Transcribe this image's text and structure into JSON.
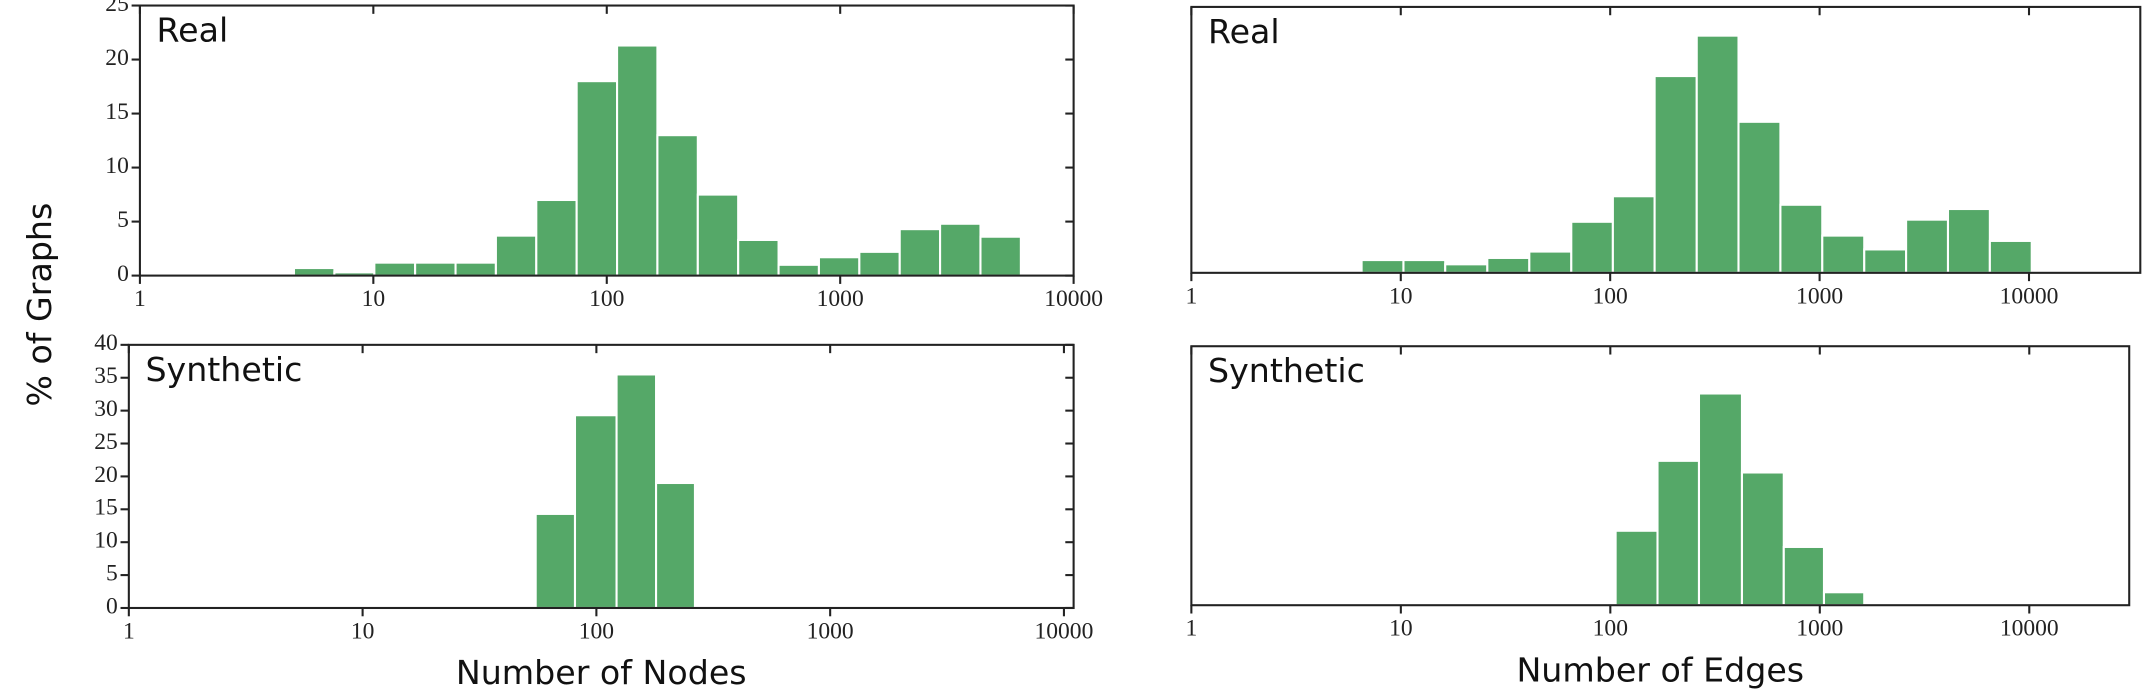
{
  "ylabel": "% of Graphs",
  "chart_data": [
    {
      "type": "histogram",
      "annotation": "Real",
      "xscale": "log",
      "color": "#55a868",
      "bins": [
        4.57,
        6.81,
        10.1,
        15.1,
        22.5,
        33.5,
        49.9,
        74.3,
        110.7,
        164.8,
        245.5,
        365.6,
        544.5,
        810.8,
        1208,
        1799,
        2679,
        3990,
        5943
      ],
      "values": [
        0.7,
        0.3,
        1.2,
        1.2,
        1.2,
        3.7,
        7,
        18,
        21.3,
        13,
        7.5,
        3.3,
        1,
        1.7,
        2.2,
        4.3,
        4.8,
        3.6
      ],
      "xlim": [
        1,
        10000
      ],
      "xticks": [
        1,
        10,
        100,
        1000,
        10000
      ],
      "ylim": [
        0,
        25
      ],
      "yticks": [
        0,
        5,
        10,
        15,
        20,
        25
      ]
    },
    {
      "type": "histogram",
      "annotation": "Real",
      "xscale": "log",
      "color": "#55a868",
      "bins": [
        6.5,
        10.3,
        16.3,
        25.9,
        41.1,
        65.2,
        103,
        163,
        259,
        410,
        650,
        1030,
        1634,
        2589,
        4103,
        6502,
        10305
      ],
      "values": [
        1.2,
        1.2,
        0.8,
        1.4,
        2,
        4.8,
        7.2,
        18.5,
        22.3,
        14.2,
        6.4,
        3.5,
        2.2,
        5,
        6,
        3
      ],
      "xlim": [
        1,
        34000
      ],
      "xticks": [
        1,
        10,
        100,
        1000,
        10000
      ],
      "ylim": [
        0,
        25
      ]
    },
    {
      "type": "histogram",
      "annotation": "Synthetic",
      "xscale": "log",
      "color": "#55a868",
      "bins": [
        55,
        81,
        122,
        180,
        264
      ],
      "values": [
        14.3,
        29.3,
        35.5,
        19
      ],
      "xlim": [
        1,
        11000
      ],
      "xticks": [
        1,
        10,
        100,
        1000,
        10000
      ],
      "ylim": [
        0,
        40
      ],
      "yticks": [
        0,
        5,
        10,
        15,
        20,
        25,
        30,
        35,
        40
      ],
      "xlabel": "Number of Nodes"
    },
    {
      "type": "histogram",
      "annotation": "Synthetic",
      "xscale": "log",
      "color": "#55a868",
      "bins": [
        106,
        168,
        265,
        425,
        673,
        1047,
        1630
      ],
      "values": [
        11.5,
        22.3,
        32.7,
        20.5,
        9,
        2
      ],
      "xlim": [
        1,
        30000
      ],
      "xticks": [
        1,
        10,
        100,
        1000,
        10000
      ],
      "ylim": [
        0,
        40
      ],
      "xlabel": "Number of Edges"
    }
  ]
}
